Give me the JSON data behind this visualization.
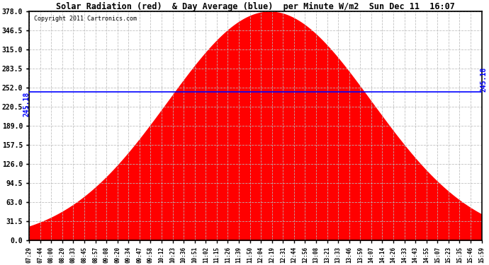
{
  "title": "Solar Radiation (red)  & Day Average (blue)  per Minute W/m2  Sun Dec 11  16:07",
  "copyright_text": "Copyright 2011 Cartronics.com",
  "ymax": 378.0,
  "ymin": 0.0,
  "ytick_step": 31.5,
  "day_average": 245.18,
  "fill_color": "#FF0000",
  "line_color": "#0000FF",
  "background_color": "#FFFFFF",
  "plot_bg_color": "#FFFFFF",
  "grid_color": "#BBBBBB",
  "peak_minute": 720,
  "sigma": 115,
  "font_family": "monospace",
  "tick_labels": [
    "07:29",
    "07:44",
    "08:00",
    "08:20",
    "08:33",
    "08:45",
    "08:57",
    "09:08",
    "09:20",
    "09:34",
    "09:47",
    "09:58",
    "10:12",
    "10:23",
    "10:36",
    "10:51",
    "11:02",
    "11:15",
    "11:26",
    "11:39",
    "11:50",
    "12:04",
    "12:19",
    "12:31",
    "12:44",
    "12:56",
    "13:08",
    "13:21",
    "13:33",
    "13:46",
    "13:59",
    "14:07",
    "14:14",
    "14:26",
    "14:33",
    "14:43",
    "14:55",
    "15:07",
    "15:23",
    "15:35",
    "15:46",
    "15:59"
  ]
}
